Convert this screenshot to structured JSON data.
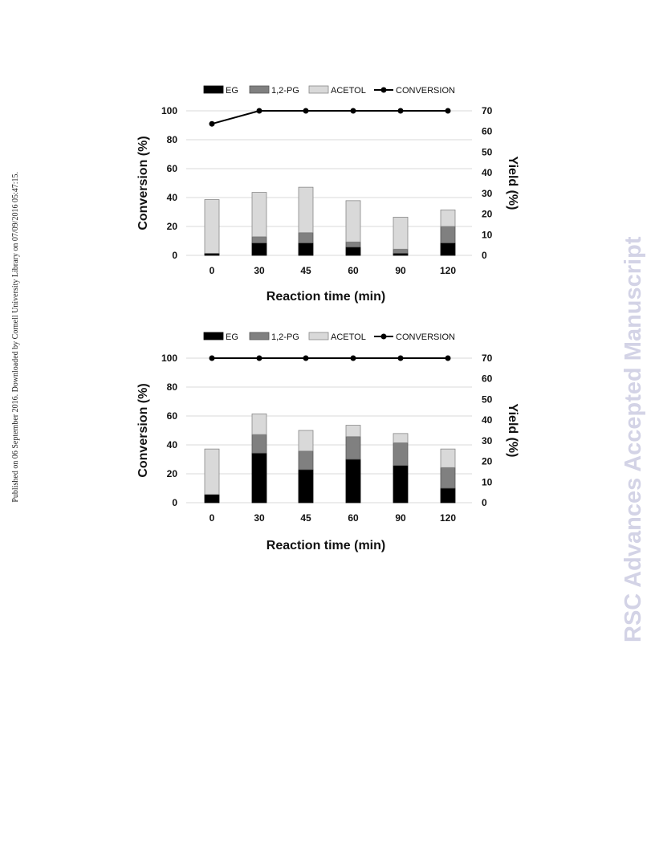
{
  "side_note": "Published on 06 September 2016. Downloaded by Cornell University Library on 07/09/2016 05:47:15.",
  "watermark": "RSC Advances Accepted Manuscript",
  "colors": {
    "eg": "#000000",
    "pg": "#808080",
    "acetol": "#d9d9d9",
    "conversion": "#000000",
    "grid": "#d9d9d9"
  },
  "chart_data": [
    {
      "type": "bar",
      "stacked": true,
      "categories": [
        "0",
        "30",
        "45",
        "60",
        "90",
        "120"
      ],
      "xlabel": "Reaction time (min)",
      "ylabel": "Conversion (%)",
      "y2label": "Yield (%)",
      "ylim": [
        0,
        100
      ],
      "y2lim": [
        0,
        70
      ],
      "yticks": [
        0,
        20,
        40,
        60,
        80,
        100
      ],
      "y2ticks": [
        0,
        10,
        20,
        30,
        40,
        50,
        60,
        70
      ],
      "legend": [
        "EG",
        "1,2-PG",
        "ACETOL",
        "CONVERSION"
      ],
      "legend_position": "top",
      "grid": true,
      "series": [
        {
          "name": "EG",
          "axis": "right",
          "values": [
            1,
            6,
            6,
            4,
            1,
            6
          ]
        },
        {
          "name": "1,2-PG",
          "axis": "right",
          "values": [
            0,
            3,
            5,
            2.5,
            2,
            8
          ]
        },
        {
          "name": "ACETOL",
          "axis": "right",
          "values": [
            26,
            21.5,
            22,
            20,
            15.5,
            8
          ]
        },
        {
          "name": "CONVERSION",
          "type": "line",
          "axis": "left",
          "values": [
            91,
            100,
            100,
            100,
            100,
            100
          ]
        }
      ]
    },
    {
      "type": "bar",
      "stacked": true,
      "categories": [
        "0",
        "30",
        "45",
        "60",
        "90",
        "120"
      ],
      "xlabel": "Reaction time (min)",
      "ylabel": "Conversion (%)",
      "y2label": "Yield (%)",
      "ylim": [
        0,
        100
      ],
      "y2lim": [
        0,
        70
      ],
      "yticks": [
        0,
        20,
        40,
        60,
        80,
        100
      ],
      "y2ticks": [
        0,
        10,
        20,
        30,
        40,
        50,
        60,
        70
      ],
      "legend": [
        "EG",
        "1,2-PG",
        "ACETOL",
        "CONVERSION"
      ],
      "legend_position": "top",
      "grid": true,
      "series": [
        {
          "name": "EG",
          "axis": "right",
          "values": [
            4,
            24,
            16,
            21,
            18,
            7
          ]
        },
        {
          "name": "1,2-PG",
          "axis": "right",
          "values": [
            0,
            9,
            9,
            11,
            11,
            10
          ]
        },
        {
          "name": "ACETOL",
          "axis": "right",
          "values": [
            22,
            10,
            10,
            5.5,
            4.5,
            9
          ]
        },
        {
          "name": "CONVERSION",
          "type": "line",
          "axis": "left",
          "values": [
            100,
            100,
            100,
            100,
            100,
            100
          ]
        }
      ]
    }
  ]
}
